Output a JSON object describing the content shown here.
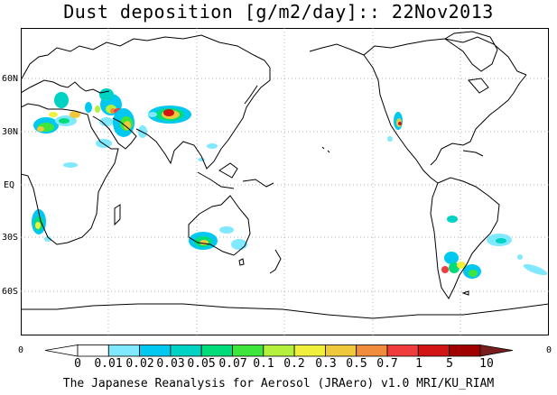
{
  "title": "Dust deposition [g/m2/day]:: 22Nov2013",
  "latitude_labels": [
    "60N",
    "30N",
    "EQ",
    "30S",
    "60S"
  ],
  "longitude_edge_labels": [
    "0",
    "0"
  ],
  "colorbar": {
    "labels": [
      "0",
      "0.01",
      "0.02",
      "0.03",
      "0.05",
      "0.07",
      "0.1",
      "0.2",
      "0.3",
      "0.5",
      "0.7",
      "1",
      "5",
      "10"
    ],
    "colors": [
      "#ffffff",
      "#ffffff",
      "#80e8ff",
      "#00c8f0",
      "#00d2c3",
      "#00dc7a",
      "#3ee63c",
      "#b4f03c",
      "#f0f03c",
      "#f0c83c",
      "#f08c3c",
      "#f03c3c",
      "#d21414",
      "#a00000",
      "#781e1e"
    ]
  },
  "credit": "The Japanese Reanalysis for Aerosol (JRAero) v1.0 MRI/KU_RIAM"
}
